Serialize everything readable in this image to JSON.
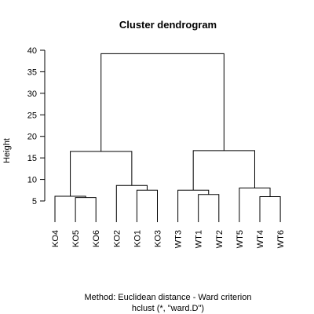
{
  "chart_data": {
    "type": "dendrogram",
    "title": "Cluster dendrogram",
    "xlabel": "Method: Euclidean distance - Ward criterion",
    "subtitle": "hclust (*, \"ward.D\")",
    "ylabel": "Height",
    "ylim": [
      0,
      40
    ],
    "yticks": [
      5,
      10,
      15,
      20,
      25,
      30,
      35,
      40
    ],
    "leaves": [
      "KO4",
      "KO5",
      "KO6",
      "KO2",
      "KO1",
      "KO3",
      "WT3",
      "WT1",
      "WT2",
      "WT5",
      "WT4",
      "WT6"
    ],
    "merges": [
      {
        "left": "KO5",
        "right": "KO6",
        "height": 5.8
      },
      {
        "left": "KO4",
        "right": "KO5+KO6",
        "height": 6.1
      },
      {
        "left": "KO1",
        "right": "KO3",
        "height": 7.5
      },
      {
        "left": "KO2",
        "right": "KO1+KO3",
        "height": 8.6
      },
      {
        "left": "KO4+KO5+KO6",
        "right": "KO2+KO1+KO3",
        "height": 16.5
      },
      {
        "left": "WT1",
        "right": "WT2",
        "height": 6.5
      },
      {
        "left": "WT3",
        "right": "WT1+WT2",
        "height": 7.5
      },
      {
        "left": "WT4",
        "right": "WT6",
        "height": 6.0
      },
      {
        "left": "WT5",
        "right": "WT4+WT6",
        "height": 8.0
      },
      {
        "left": "WT3+WT1+WT2",
        "right": "WT5+WT4+WT6",
        "height": 16.7
      },
      {
        "left": "KO cluster",
        "right": "WT cluster",
        "height": 39.2
      }
    ],
    "grid": false,
    "legend": "none"
  },
  "colors": {
    "line": "#000000",
    "background": "#ffffff"
  }
}
